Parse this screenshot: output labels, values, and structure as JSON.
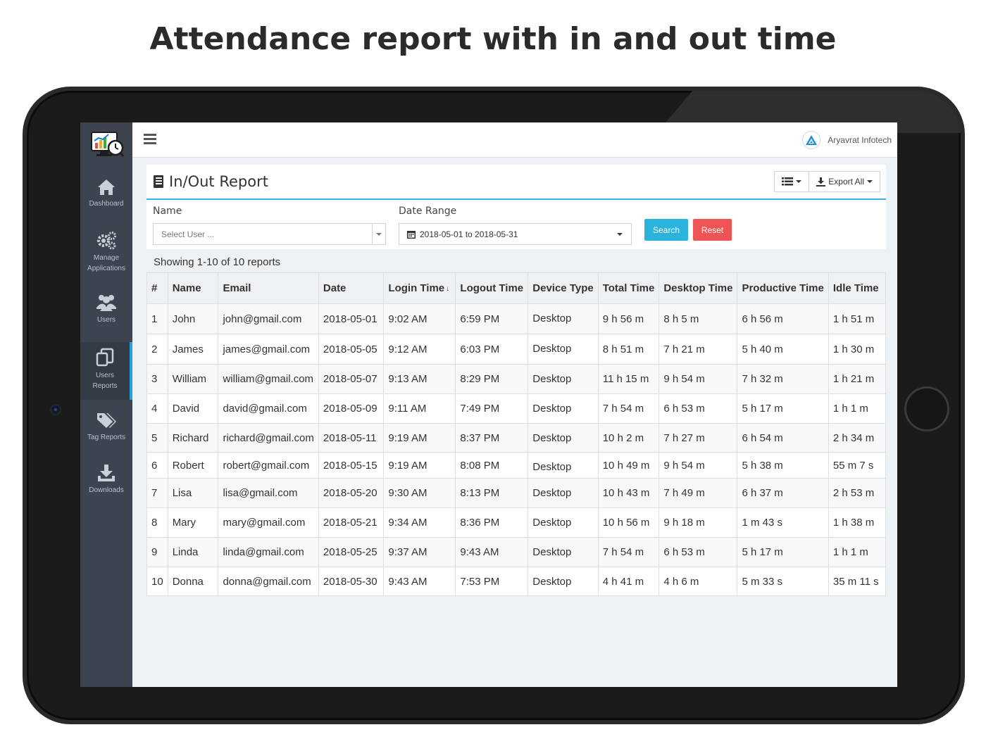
{
  "headline": "Attendance report with in and out time",
  "sidebar": {
    "items": [
      {
        "label": "Dashboard"
      },
      {
        "label": "Manage Applications"
      },
      {
        "label": "Users"
      },
      {
        "label": "Users Reports",
        "active": true
      },
      {
        "label": "Tag Reports"
      },
      {
        "label": "Downloads"
      }
    ]
  },
  "topbar": {
    "brand": "Aryavrat Infotech"
  },
  "panel": {
    "title": "In/Out Report",
    "export_label": "Export All"
  },
  "filters": {
    "name_label": "Name",
    "name_placeholder": "Select User ...",
    "date_label": "Date Range",
    "date_value": "2018-05-01 to 2018-05-31",
    "search_label": "Search",
    "reset_label": "Reset"
  },
  "showing": "Showing 1-10 of 10 reports",
  "table": {
    "headers": [
      "#",
      "Name",
      "Email",
      "Date",
      "Login Time",
      "Logout Time",
      "Device Type",
      "Total Time",
      "Desktop Time",
      "Productive Time",
      "Idle Time"
    ],
    "rows": [
      [
        "1",
        "John",
        "john@gmail.com",
        "2018-05-01",
        "9:02 AM",
        "6:59 PM",
        "Desktop",
        "9 h 56 m",
        "8 h 5 m",
        "6 h 56 m",
        "1 h 51 m"
      ],
      [
        "2",
        "James",
        "james@gmail.com",
        "2018-05-05",
        "9:12 AM",
        "6:03 PM",
        "Desktop",
        "8 h 51 m",
        "7 h 21 m",
        "5 h 40 m",
        "1 h 30 m"
      ],
      [
        "3",
        "William",
        "william@gmail.com",
        "2018-05-07",
        "9:13 AM",
        "8:29 PM",
        "Desktop",
        "11 h 15 m",
        "9 h 54 m",
        "7 h 32 m",
        "1 h 21 m"
      ],
      [
        "4",
        "David",
        "david@gmail.com",
        "2018-05-09",
        "9:11 AM",
        "7:49 PM",
        "Desktop",
        "7 h 54 m",
        "6 h 53 m",
        "5 h 17 m",
        "1 h 1 m"
      ],
      [
        "5",
        "Richard",
        "richard@gmail.com",
        "2018-05-11",
        "9:19 AM",
        "8:37 PM",
        "Desktop",
        "10 h 2 m",
        "7 h 27 m",
        "6 h 54 m",
        "2 h 34 m"
      ],
      [
        "6",
        "Robert",
        "robert@gmail.com",
        "2018-05-15",
        "9:19 AM",
        "8:08 PM",
        "Desktop",
        "10 h 49 m",
        "9 h 54 m",
        "5 h 38 m",
        "55 m 7 s"
      ],
      [
        "7",
        "Lisa",
        "lisa@gmail.com",
        "2018-05-20",
        "9:30 AM",
        "8:13 PM",
        "Desktop",
        "10 h 43 m",
        "7 h 49 m",
        "6 h 37 m",
        "2 h 53 m"
      ],
      [
        "8",
        "Mary",
        "mary@gmail.com",
        "2018-05-21",
        "9:34 AM",
        "8:36 PM",
        "Desktop",
        "10 h 56 m",
        "9 h 18 m",
        "1 m 43 s",
        "1 h 38 m"
      ],
      [
        "9",
        "Linda",
        "linda@gmail.com",
        "2018-05-25",
        "9:37 AM",
        "9:43 AM",
        "Desktop",
        "7 h 54 m",
        "6 h 53 m",
        "5 h 17 m",
        "1 h 1 m"
      ],
      [
        "10",
        "Donna",
        "donna@gmail.com",
        "2018-05-30",
        "9:43 AM",
        "7:53 PM",
        "Desktop",
        "4 h 41 m",
        "4 h 6 m",
        "5 m 33 s",
        "35 m 11 s"
      ]
    ]
  },
  "colors": {
    "sidebar_bg": "#3d4450",
    "accent": "#1ea5e0",
    "search_btn": "#2bb3dd",
    "reset_btn": "#ee5455"
  }
}
